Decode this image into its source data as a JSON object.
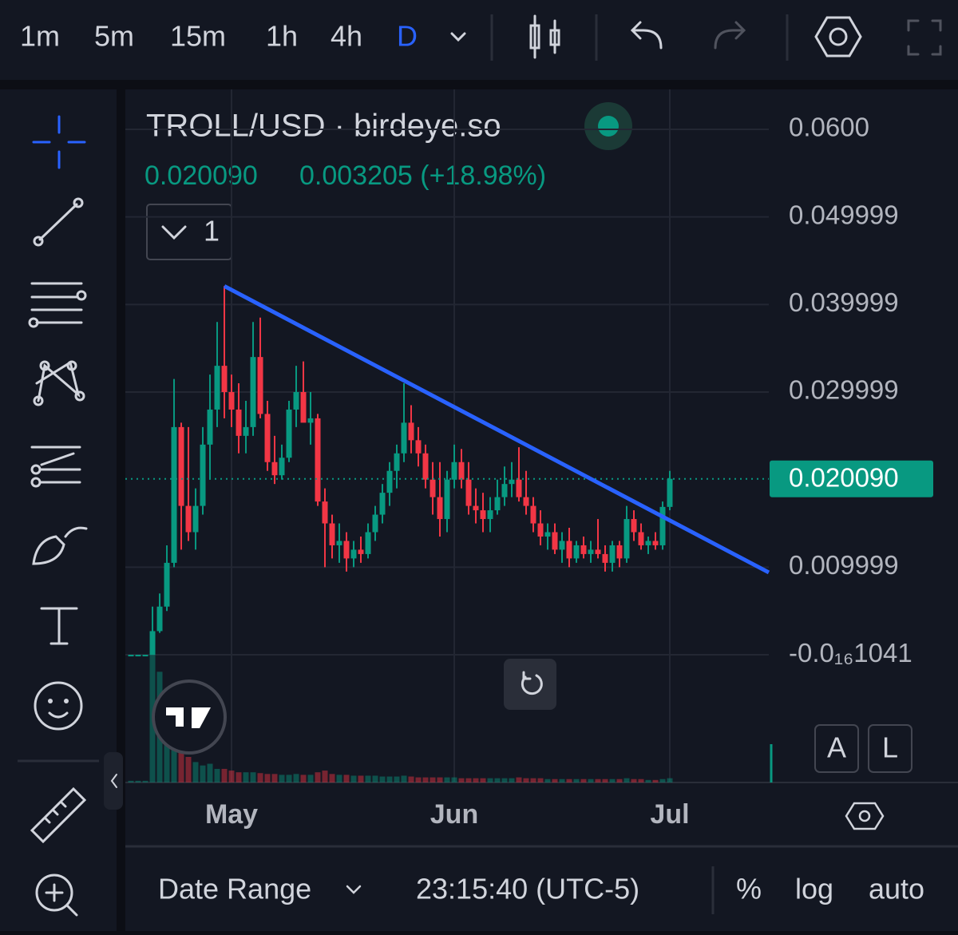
{
  "toolbar": {
    "intervals": [
      "1m",
      "5m",
      "15m",
      "1h",
      "4h",
      "D"
    ]
  },
  "chart_data": {
    "type": "candlestick",
    "title": "TROLL/USD · birdeye.so",
    "legend": {
      "last": "0.020090",
      "change": "0.003205 (+18.98%)"
    },
    "pane_toggle": "1",
    "up_color": "#089981",
    "down_color": "#f23645",
    "open": [
      0,
      0,
      0,
      0,
      0.0027,
      0.0055,
      0.0105,
      0.026,
      0.017,
      0.014,
      0.017,
      0.024,
      0.028,
      0.033,
      0.03,
      0.028,
      0.025,
      0.026,
      0.034,
      0.0275,
      0.022,
      0.0205,
      0.0225,
      0.028,
      0.03,
      0.0265,
      0.027,
      0.0175,
      0.015,
      0.0125,
      0.013,
      0.011,
      0.012,
      0.0115,
      0.014,
      0.016,
      0.0185,
      0.021,
      0.023,
      0.0265,
      0.0245,
      0.023,
      0.02,
      0.018,
      0.0155,
      0.02,
      0.022,
      0.02,
      0.017,
      0.0165,
      0.0155,
      0.0165,
      0.018,
      0.0195,
      0.02,
      0.018,
      0.017,
      0.015,
      0.0135,
      0.014,
      0.012,
      0.013,
      0.011,
      0.0125,
      0.0115,
      0.012,
      0.0115,
      0.0105,
      0.0125,
      0.011,
      0.0155,
      0.014,
      0.0125,
      0.013,
      0.0125,
      0.016885
    ],
    "high": [
      0,
      0,
      0,
      0.0055,
      0.007,
      0.0125,
      0.0315,
      0.0265,
      0.026,
      0.019,
      0.026,
      0.032,
      0.038,
      0.0421,
      0.032,
      0.031,
      0.029,
      0.038,
      0.0385,
      0.029,
      0.025,
      0.024,
      0.029,
      0.033,
      0.0335,
      0.03,
      0.0275,
      0.019,
      0.016,
      0.015,
      0.014,
      0.013,
      0.0135,
      0.015,
      0.017,
      0.0195,
      0.022,
      0.024,
      0.031,
      0.0285,
      0.026,
      0.024,
      0.022,
      0.022,
      0.021,
      0.024,
      0.0235,
      0.022,
      0.019,
      0.0185,
      0.018,
      0.02,
      0.0215,
      0.022,
      0.0237,
      0.021,
      0.018,
      0.0165,
      0.015,
      0.015,
      0.014,
      0.0145,
      0.013,
      0.0135,
      0.013,
      0.0155,
      0.0125,
      0.013,
      0.013,
      0.017,
      0.0165,
      0.015,
      0.0135,
      0.014,
      0.0175,
      0.021
    ],
    "low": [
      0,
      0,
      0,
      0,
      0.0025,
      0.005,
      0.01,
      0.012,
      0.013,
      0.012,
      0.016,
      0.02,
      0.026,
      0.027,
      0.026,
      0.023,
      0.023,
      0.025,
      0.027,
      0.021,
      0.0195,
      0.02,
      0.022,
      0.026,
      0.027,
      0.024,
      0.017,
      0.01,
      0.011,
      0.0105,
      0.0095,
      0.01,
      0.0105,
      0.011,
      0.013,
      0.015,
      0.017,
      0.019,
      0.022,
      0.023,
      0.0215,
      0.019,
      0.016,
      0.0135,
      0.014,
      0.019,
      0.019,
      0.016,
      0.015,
      0.014,
      0.014,
      0.016,
      0.017,
      0.018,
      0.0175,
      0.016,
      0.014,
      0.0125,
      0.012,
      0.0115,
      0.0105,
      0.01,
      0.0105,
      0.011,
      0.0105,
      0.011,
      0.0095,
      0.0095,
      0.01,
      0.0105,
      0.013,
      0.012,
      0.0115,
      0.012,
      0.012,
      0.0165
    ],
    "close": [
      0,
      0,
      0,
      0.0027,
      0.0055,
      0.0105,
      0.026,
      0.017,
      0.014,
      0.017,
      0.024,
      0.028,
      0.033,
      0.03,
      0.028,
      0.025,
      0.026,
      0.034,
      0.0275,
      0.022,
      0.0205,
      0.0225,
      0.028,
      0.03,
      0.0265,
      0.027,
      0.0175,
      0.015,
      0.0125,
      0.013,
      0.011,
      0.012,
      0.0115,
      0.014,
      0.016,
      0.0185,
      0.021,
      0.023,
      0.0265,
      0.0245,
      0.023,
      0.02,
      0.018,
      0.0155,
      0.02,
      0.022,
      0.02,
      0.017,
      0.0165,
      0.0155,
      0.0165,
      0.018,
      0.0195,
      0.02,
      0.018,
      0.017,
      0.015,
      0.0135,
      0.014,
      0.012,
      0.013,
      0.011,
      0.0125,
      0.0115,
      0.012,
      0.0115,
      0.0105,
      0.0125,
      0.011,
      0.0155,
      0.014,
      0.0125,
      0.013,
      0.0125,
      0.016885,
      0.02009
    ],
    "volume": [
      2,
      2,
      2,
      150,
      130,
      110,
      70,
      40,
      30,
      24,
      20,
      22,
      16,
      16,
      14,
      12,
      12,
      12,
      11,
      10,
      10,
      9,
      9,
      10,
      9,
      9,
      12,
      14,
      10,
      9,
      9,
      8,
      8,
      8,
      8,
      7,
      7,
      7,
      8,
      7,
      6,
      6,
      6,
      6,
      6,
      6,
      5,
      5,
      5,
      5,
      5,
      5,
      5,
      5,
      6,
      5,
      5,
      5,
      4,
      4,
      4,
      4,
      4,
      4,
      4,
      4,
      4,
      4,
      4,
      5,
      4,
      4,
      3,
      3,
      4,
      5
    ],
    "trendline": {
      "x": [
        13,
        88.78
      ],
      "y": [
        0.0421,
        0.0094
      ],
      "color": "#2962ff"
    },
    "price_line": {
      "value": 0.02009,
      "label": "0.020090"
    },
    "xlim": [
      -0.78,
      88.78
    ],
    "xticks": [
      {
        "value": 14,
        "label": "May"
      },
      {
        "value": 45,
        "label": "Jun"
      },
      {
        "value": 75,
        "label": "Jul"
      }
    ],
    "ylim": [
      -0.014585,
      0.064558
    ],
    "yticks": [
      {
        "value": -1.041e-17,
        "label": "-0.0₁₆1041"
      },
      {
        "value": 0.009999,
        "label": "0.009999"
      },
      {
        "value": 0.029999,
        "label": "0.029999"
      },
      {
        "value": 0.039999,
        "label": "0.039999"
      },
      {
        "value": 0.049999,
        "label": "0.049999"
      },
      {
        "value": 0.06,
        "label": "0.0600"
      }
    ],
    "grid": true,
    "scale_buttons": [
      "A",
      "L"
    ]
  },
  "footer": {
    "date_range": "Date Range",
    "time": "23:15:40 (UTC-5)",
    "options": [
      "%",
      "log",
      "auto"
    ]
  }
}
